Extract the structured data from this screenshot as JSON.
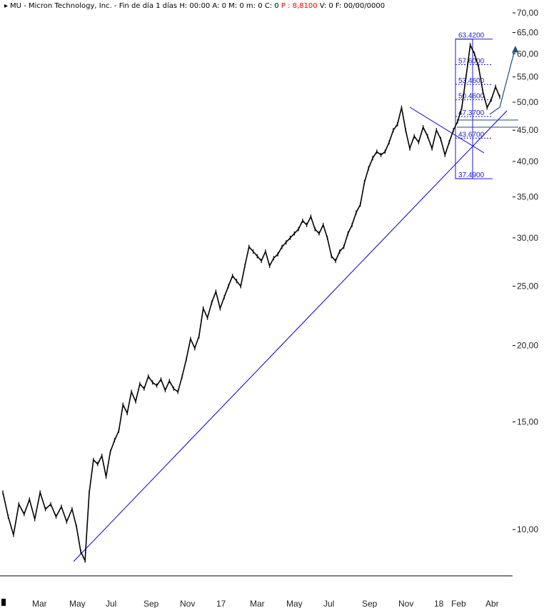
{
  "header": {
    "symbol": "MU",
    "name": "Micron Technology, Inc.",
    "period": "Fin de día 1 días",
    "h": "H: 00:00",
    "a": "A: 0",
    "m1": "M: 0",
    "m2": "m: 0",
    "c": "C: 0",
    "p": "P : 8,8100",
    "v": "V: 0",
    "f": "F: 00/00/0000"
  },
  "colors": {
    "price": "#000000",
    "trendline": "#0000cc",
    "fib": "#1a1acc",
    "projection": "#1f4e79",
    "highlight_p": "#ff0000"
  },
  "chart_data": {
    "type": "line",
    "scale": "log",
    "ylim": [
      8.4,
      70
    ],
    "yticks": [
      {
        "v": 70,
        "label": "70,00"
      },
      {
        "v": 65,
        "label": "65,00"
      },
      {
        "v": 60,
        "label": "60,00"
      },
      {
        "v": 55,
        "label": "55,00"
      },
      {
        "v": 50,
        "label": "50,00"
      },
      {
        "v": 45,
        "label": "45,00"
      },
      {
        "v": 40,
        "label": "40,00"
      },
      {
        "v": 35,
        "label": "35,00"
      },
      {
        "v": 30,
        "label": "30,00"
      },
      {
        "v": 25,
        "label": "25,00"
      },
      {
        "v": 20,
        "label": "20,00"
      },
      {
        "v": 15,
        "label": "15,00"
      },
      {
        "v": 10,
        "label": "10,00"
      }
    ],
    "xticks": [
      "Mar",
      "May",
      "Jul",
      "Sep",
      "Nov",
      "17",
      "Mar",
      "May",
      "Jul",
      "Sep",
      "Nov",
      "18",
      "Feb",
      "Abr"
    ],
    "series": [
      {
        "x": [
          "2016-01-29",
          "2016-02-05",
          "2016-02-12",
          "2016-02-19",
          "2016-02-26",
          "2016-03-04",
          "2016-03-11",
          "2016-03-18",
          "2016-03-25",
          "2016-04-01",
          "2016-04-08",
          "2016-04-15",
          "2016-04-22",
          "2016-04-29",
          "2016-05-06",
          "2016-05-13",
          "2016-05-20",
          "2016-05-27",
          "2016-06-03",
          "2016-06-10",
          "2016-06-17",
          "2016-06-24",
          "2016-07-01",
          "2016-07-08",
          "2016-07-15",
          "2016-07-22",
          "2016-07-29",
          "2016-08-05",
          "2016-08-12",
          "2016-08-19",
          "2016-08-26",
          "2016-09-02",
          "2016-09-09",
          "2016-09-16",
          "2016-09-23",
          "2016-09-30",
          "2016-10-07",
          "2016-10-14",
          "2016-10-21",
          "2016-10-28",
          "2016-11-04",
          "2016-11-11",
          "2016-11-18",
          "2016-11-25",
          "2016-12-02",
          "2016-12-09",
          "2016-12-16",
          "2016-12-23",
          "2016-12-30",
          "2017-01-06",
          "2017-01-13",
          "2017-01-20",
          "2017-01-27",
          "2017-02-03",
          "2017-02-10",
          "2017-02-17",
          "2017-02-24",
          "2017-03-03",
          "2017-03-10",
          "2017-03-17",
          "2017-03-24",
          "2017-03-31",
          "2017-04-07",
          "2017-04-14",
          "2017-04-21",
          "2017-04-28",
          "2017-05-05",
          "2017-05-12",
          "2017-05-19",
          "2017-05-26",
          "2017-06-02",
          "2017-06-09",
          "2017-06-16",
          "2017-06-23",
          "2017-06-30",
          "2017-07-07",
          "2017-07-14",
          "2017-07-21",
          "2017-07-28",
          "2017-08-04",
          "2017-08-11",
          "2017-08-18",
          "2017-08-25",
          "2017-09-01",
          "2017-09-08",
          "2017-09-15",
          "2017-09-22",
          "2017-09-29",
          "2017-10-06",
          "2017-10-13",
          "2017-10-20",
          "2017-10-27",
          "2017-11-03",
          "2017-11-10",
          "2017-11-17",
          "2017-11-24",
          "2017-12-01",
          "2017-12-08",
          "2017-12-15",
          "2017-12-22",
          "2017-12-29",
          "2018-01-05",
          "2018-01-12",
          "2018-01-19",
          "2018-01-26",
          "2018-02-02",
          "2018-02-09",
          "2018-02-16",
          "2018-02-23",
          "2018-03-02",
          "2018-03-09",
          "2018-03-16",
          "2018-03-23",
          "2018-03-30",
          "2018-04-06",
          "2018-04-13"
        ],
        "values": [
          11.5,
          10.5,
          9.8,
          11.0,
          10.6,
          11.2,
          10.4,
          11.5,
          10.8,
          11.0,
          10.5,
          10.9,
          10.3,
          10.8,
          10.1,
          9.2,
          8.9,
          11.5,
          13.0,
          12.8,
          13.2,
          12.2,
          13.4,
          14.0,
          14.5,
          16.0,
          15.5,
          16.8,
          16.2,
          17.3,
          17.0,
          17.8,
          17.4,
          17.2,
          17.6,
          16.9,
          17.5,
          17.0,
          16.8,
          17.8,
          19.0,
          20.5,
          19.8,
          20.7,
          23.0,
          22.2,
          23.5,
          24.5,
          23.0,
          24.0,
          25.0,
          26.0,
          25.5,
          25.0,
          27.0,
          29.0,
          28.5,
          28.0,
          27.5,
          28.5,
          27.0,
          27.8,
          28.2,
          29.0,
          29.5,
          30.0,
          30.5,
          31.0,
          32.0,
          31.5,
          32.5,
          31.0,
          30.5,
          31.5,
          30.0,
          28.0,
          27.5,
          28.5,
          29.0,
          30.5,
          31.5,
          33.0,
          34.0,
          37.0,
          39.0,
          40.5,
          41.5,
          41.0,
          41.5,
          43.0,
          45.0,
          46.0,
          49.0,
          45.0,
          42.0,
          44.0,
          43.0,
          45.5,
          44.0,
          42.0,
          45.0,
          43.5,
          41.0,
          43.0,
          45.0,
          46.5,
          49.0,
          55.0,
          62.0,
          60.0,
          57.0,
          52.0,
          49.0,
          50.5,
          53.0,
          51.0
        ]
      }
    ],
    "annotations": {
      "fib_levels": [
        {
          "v": 63.42,
          "label": "63.4200"
        },
        {
          "v": 57.6,
          "label": "57.6000"
        },
        {
          "v": 53.46,
          "label": "53.4600"
        },
        {
          "v": 50.46,
          "label": "50.4600"
        },
        {
          "v": 47.37,
          "label": "47.3700"
        },
        {
          "v": 43.67,
          "label": "43.6700"
        },
        {
          "v": 37.49,
          "label": "37.4900"
        }
      ]
    }
  }
}
